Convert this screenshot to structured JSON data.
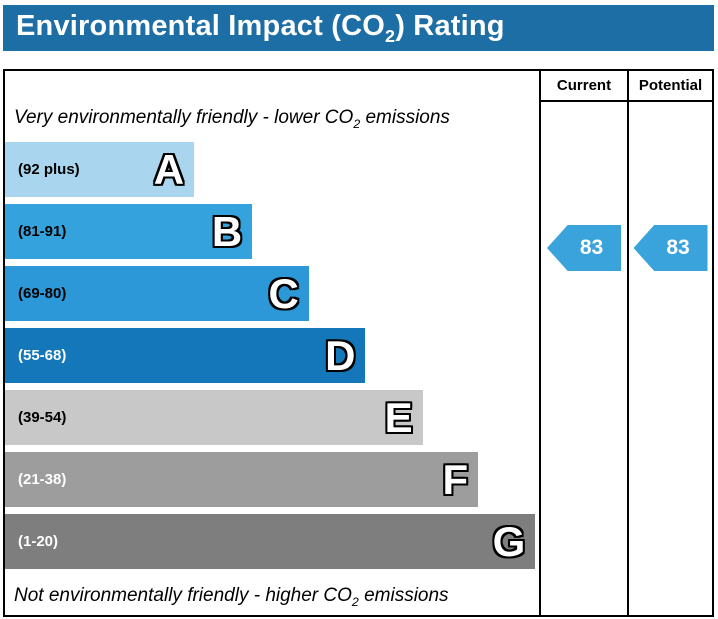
{
  "title": {
    "prefix": "Environmental Impact (CO",
    "sub": "2",
    "suffix": ") Rating"
  },
  "header": {
    "current": "Current",
    "potential": "Potential"
  },
  "notes": {
    "top": {
      "prefix": "Very environmentally friendly - lower CO",
      "sub": "2",
      "suffix": " emissions"
    },
    "bottom": {
      "prefix": "Not environmentally friendly - higher CO",
      "sub": "2",
      "suffix": " emissions"
    }
  },
  "colors": {
    "title_bg": "#1c6ea4",
    "arrow": "#3ba3dc",
    "border": "#000000"
  },
  "chart_data": {
    "type": "bar",
    "title": "Environmental Impact (CO2) Rating",
    "top_annotation": "Very environmentally friendly - lower CO2 emissions",
    "bottom_annotation": "Not environmentally friendly - higher CO2 emissions",
    "columns": [
      "Current",
      "Potential"
    ],
    "bands": [
      {
        "letter": "A",
        "range": "(92 plus)",
        "color": "#a9d6ee",
        "width_pct": 35.4,
        "label_color": "#000000"
      },
      {
        "letter": "B",
        "range": "(81-91)",
        "color": "#34a2dc",
        "width_pct": 46.3,
        "label_color": "#000000"
      },
      {
        "letter": "C",
        "range": "(69-80)",
        "color": "#2c98d7",
        "width_pct": 56.9,
        "label_color": "#000000"
      },
      {
        "letter": "D",
        "range": "(55-68)",
        "color": "#1377b9",
        "width_pct": 67.5,
        "label_color": "#ffffff"
      },
      {
        "letter": "E",
        "range": "(39-54)",
        "color": "#c8c8c8",
        "width_pct": 78.2,
        "label_color": "#000000"
      },
      {
        "letter": "F",
        "range": "(21-38)",
        "color": "#9d9d9d",
        "width_pct": 88.6,
        "label_color": "#ffffff"
      },
      {
        "letter": "G",
        "range": "(1-20)",
        "color": "#7e7e7e",
        "width_pct": 99.3,
        "label_color": "#ffffff"
      }
    ],
    "current": {
      "value": 83,
      "band": "B"
    },
    "potential": {
      "value": 83,
      "band": "B"
    }
  }
}
